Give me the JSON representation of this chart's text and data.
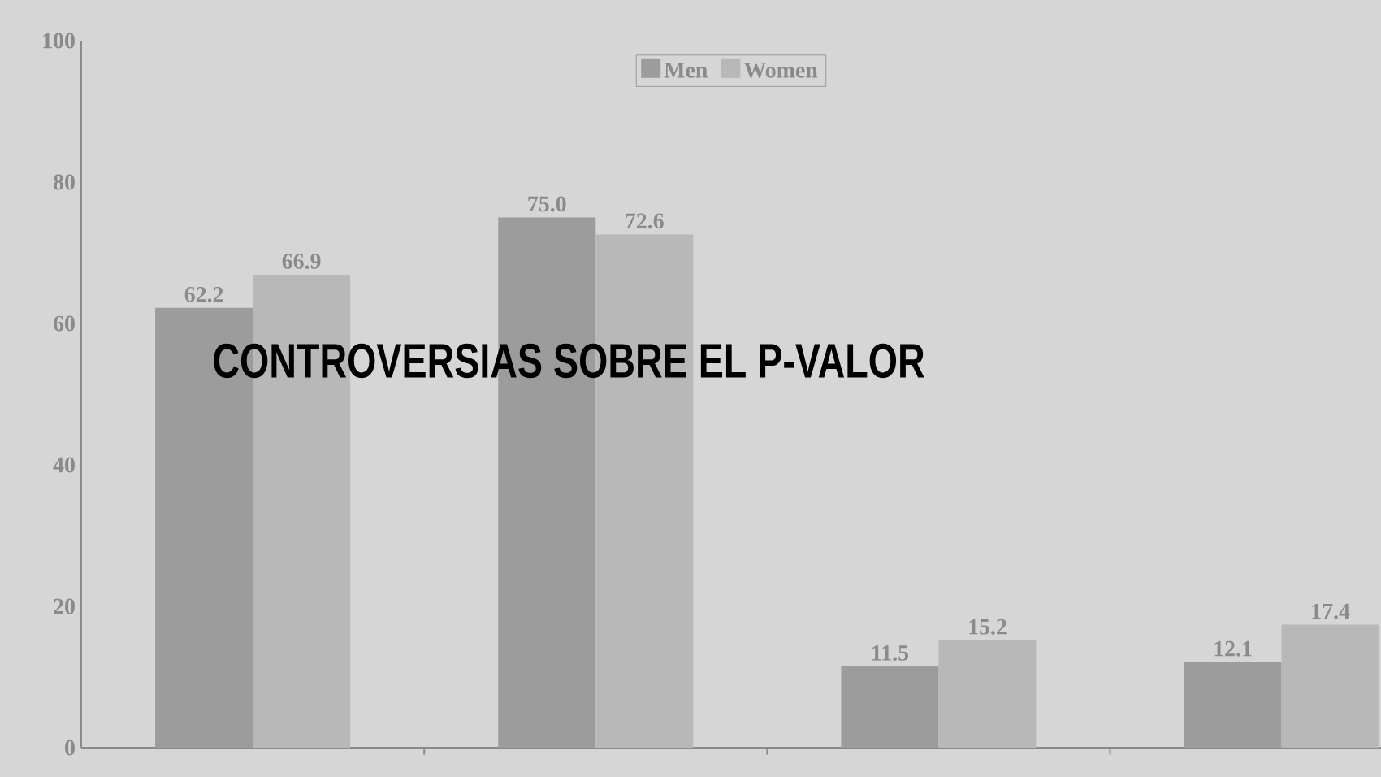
{
  "chart_data": {
    "type": "bar",
    "title": "CONTROVERSIAS SOBRE EL P-VALOR",
    "categories": [
      null,
      null,
      null,
      null
    ],
    "series": [
      {
        "name": "Men",
        "color": "#9c9c9c",
        "values": [
          62.2,
          75.0,
          11.5,
          12.1
        ],
        "value_labels": [
          "62.2",
          "75.0",
          "11.5",
          "12.1"
        ]
      },
      {
        "name": "Women",
        "color": "#b8b8b8",
        "values": [
          66.9,
          72.6,
          15.2,
          17.4
        ],
        "value_labels": [
          "66.9",
          "72.6",
          "15.2",
          "17.4"
        ]
      }
    ],
    "ylim": [
      0,
      100
    ],
    "yticks": [
      0,
      20,
      40,
      60,
      80,
      100
    ],
    "legend": "top",
    "grid": false
  }
}
